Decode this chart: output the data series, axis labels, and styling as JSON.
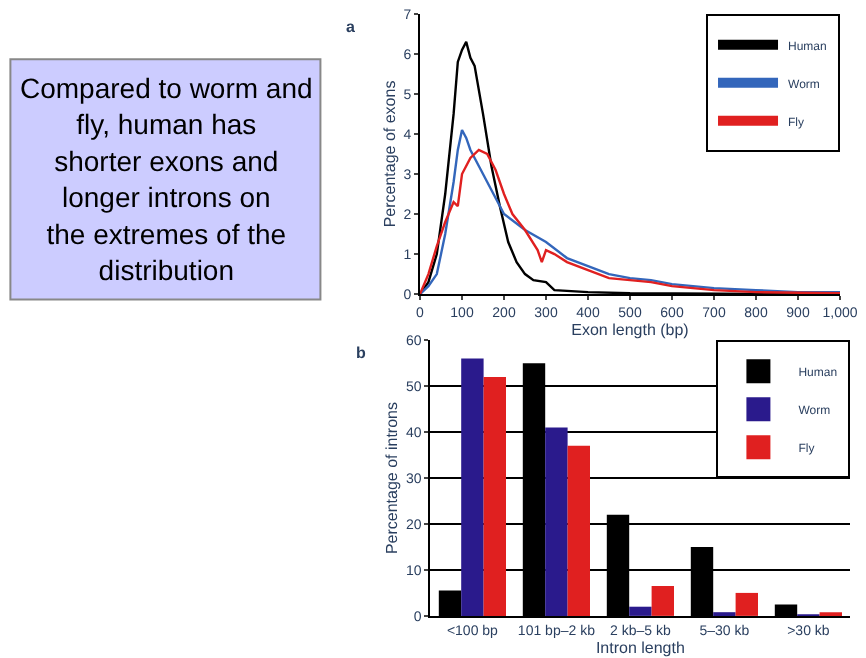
{
  "chart_data": [
    {
      "type": "other",
      "color": "#ccccff",
      "annotations": [
        "Compared to worm and fly, human has shorter exons and longer introns on the extremes of the distribution"
      ]
    },
    {
      "type": "line",
      "xlabel": "Exon length (bp)",
      "ylabel": "Percentage of exons",
      "annotations": [
        "a"
      ],
      "legend": "top right",
      "grid": false,
      "xlim": [
        0,
        1000
      ],
      "ylim": [
        0,
        7
      ],
      "xticks": [
        0,
        100,
        200,
        300,
        400,
        500,
        600,
        700,
        800,
        900,
        {
          "value": 1000,
          "label": "1,000"
        }
      ],
      "yticks": [
        0,
        1,
        2,
        3,
        4,
        5,
        6,
        7
      ],
      "series": [
        {
          "name": "Human",
          "color": "#000000",
          "x": [
            0,
            20,
            40,
            60,
            80,
            90,
            100,
            110,
            120,
            130,
            150,
            170,
            190,
            210,
            230,
            250,
            270,
            300,
            320,
            400,
            500,
            1000
          ],
          "values": [
            0,
            0.3,
            1,
            2.5,
            4.5,
            5.8,
            6.1,
            6.3,
            5.9,
            5.7,
            4.5,
            3.2,
            2.2,
            1.3,
            0.8,
            0.5,
            0.35,
            0.3,
            0.1,
            0.05,
            0.02,
            0
          ]
        },
        {
          "name": "Worm",
          "color": "#3366bb",
          "x": [
            0,
            20,
            40,
            60,
            80,
            90,
            100,
            110,
            120,
            140,
            160,
            180,
            200,
            250,
            300,
            350,
            400,
            450,
            500,
            550,
            600,
            700,
            800,
            900,
            1000
          ],
          "values": [
            0,
            0.2,
            0.5,
            1.5,
            2.8,
            3.6,
            4.1,
            3.9,
            3.6,
            3.2,
            2.8,
            2.4,
            2.0,
            1.6,
            1.3,
            0.9,
            0.7,
            0.5,
            0.4,
            0.35,
            0.25,
            0.15,
            0.1,
            0.05,
            0.05
          ]
        },
        {
          "name": "Fly",
          "color": "#e02020",
          "x": [
            0,
            20,
            40,
            60,
            80,
            90,
            100,
            120,
            140,
            160,
            180,
            200,
            220,
            250,
            280,
            290,
            300,
            320,
            350,
            400,
            450,
            500,
            550,
            600,
            700,
            800,
            1000
          ],
          "values": [
            0,
            0.5,
            1.2,
            1.8,
            2.3,
            2.2,
            3.0,
            3.4,
            3.6,
            3.5,
            3.1,
            2.5,
            2.0,
            1.6,
            1.1,
            0.8,
            1.1,
            1.0,
            0.8,
            0.6,
            0.4,
            0.35,
            0.3,
            0.2,
            0.1,
            0.05,
            0.02
          ]
        }
      ]
    },
    {
      "type": "bar",
      "xlabel": "Intron length",
      "ylabel": "Percentage of introns",
      "annotations": [
        "b"
      ],
      "legend": "top right",
      "grid": "y",
      "ylim": [
        0,
        60
      ],
      "yticks": [
        0,
        10,
        20,
        30,
        40,
        50,
        60
      ],
      "categories": [
        "<100 bp",
        "101 bp–2 kb",
        "2 kb–5 kb",
        "5–30 kb",
        ">30 kb"
      ],
      "series": [
        {
          "name": "Human",
          "color": "#000000",
          "values": [
            5.5,
            55,
            22,
            15,
            2.5
          ]
        },
        {
          "name": "Worm",
          "color": "#2a1a8c",
          "values": [
            56,
            41,
            2,
            0.5,
            0.2
          ]
        },
        {
          "name": "Fly",
          "color": "#e02020",
          "values": [
            52,
            37,
            6.5,
            5,
            0.5
          ]
        }
      ]
    }
  ]
}
